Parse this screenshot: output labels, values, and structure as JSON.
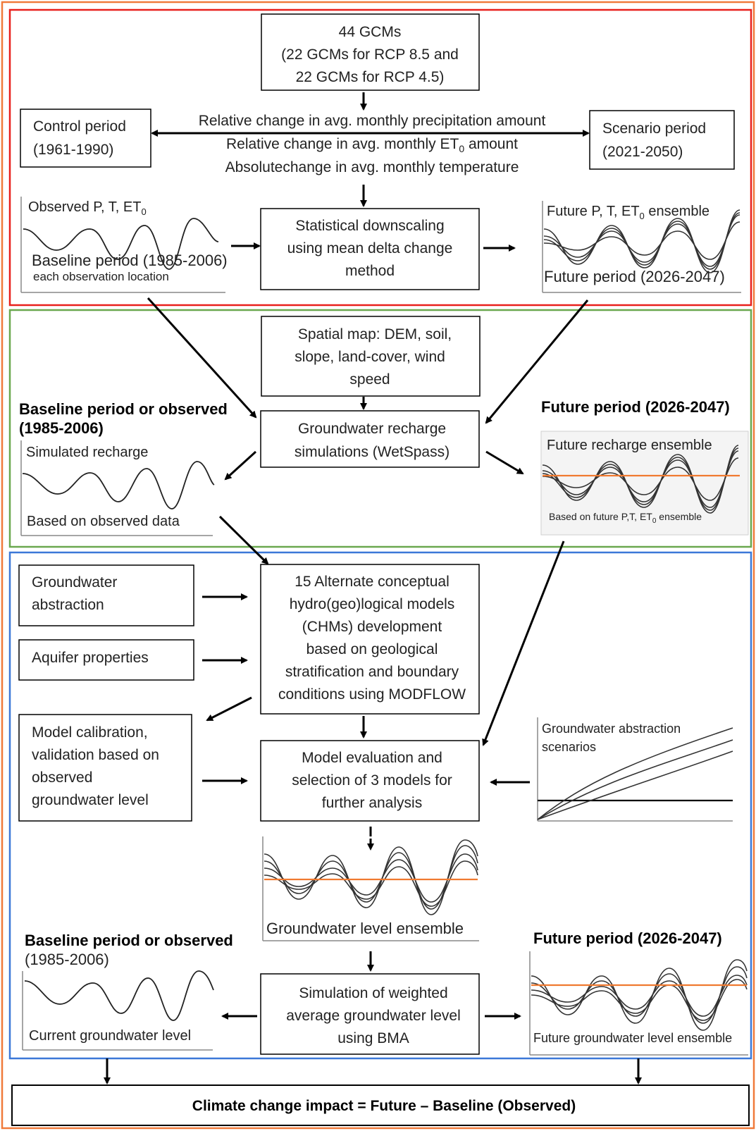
{
  "gcm_box": {
    "line1": "44 GCMs",
    "line2": "(22 GCMs for RCP 8.5 and",
    "line3": "22 GCMs for RCP 4.5)"
  },
  "control_period": {
    "line1": "Control period",
    "line2": "(1961-1990)"
  },
  "scenario_period": {
    "line1": "Scenario period",
    "line2": "(2021-2050)"
  },
  "changes": {
    "line1": "Relative change in avg. monthly precipitation amount",
    "line2_pre": "Relative change in avg. monthly ET",
    "line2_sub": "0",
    "line2_post": " amount",
    "line3": "Absolutechange in avg. monthly temperature"
  },
  "observed": {
    "title_pre": "Observed P, T, ET",
    "title_sub": "0",
    "label": "Baseline period (1985-2006)",
    "sublabel": "each observation location"
  },
  "downscaling": {
    "line1": "Statistical downscaling",
    "line2": "using mean delta change",
    "line3": "method"
  },
  "future_climate": {
    "title_pre": "Future P, T, ET",
    "title_sub": "0",
    "title_post": " ensemble",
    "label": "Future period (2026-2047)"
  },
  "spatial_map": {
    "line1": "Spatial map: DEM, soil,",
    "line2": "slope, land-cover, wind",
    "line3": "speed"
  },
  "recharge_sim": {
    "line1": "Groundwater recharge",
    "line2": "simulations (WetSpass)"
  },
  "baseline_recharge": {
    "heading1": "Baseline period or observed",
    "heading2": "(1985-2006)",
    "title": "Simulated recharge",
    "label": "Based on observed data"
  },
  "future_recharge": {
    "heading": "Future period (2026-2047)",
    "title": "Future recharge ensemble",
    "label_pre": "Based on future P,T, ET",
    "label_sub": "0",
    "label_post": " ensemble"
  },
  "gw_abstraction": {
    "line1": "Groundwater",
    "line2": "abstraction"
  },
  "aquifer": {
    "label": "Aquifer properties"
  },
  "chm": {
    "line1": "15 Alternate conceptual",
    "line2": "hydro(geo)logical models",
    "line3": "(CHMs) development",
    "line4": "based on geological",
    "line5": "stratification and boundary",
    "line6": "conditions using MODFLOW"
  },
  "calibration": {
    "line1": "Model calibration,",
    "line2": "validation based on",
    "line3": "observed",
    "line4": "groundwater level"
  },
  "evaluation": {
    "line1": "Model evaluation and",
    "line2": "selection of 3 models for",
    "line3": "further analysis"
  },
  "abstraction_scenarios": {
    "line1": "Groundwater abstraction",
    "line2": "scenarios"
  },
  "gw_ensemble": {
    "label": "Groundwater level ensemble"
  },
  "baseline_gw": {
    "heading1": "Baseline period or observed",
    "heading2": "(1985-2006)",
    "label": "Current groundwater level"
  },
  "bma": {
    "line1": "Simulation of weighted",
    "line2": "average groundwater level",
    "line3": "using BMA"
  },
  "future_gw": {
    "heading": "Future period (2026-2047)",
    "label": "Future groundwater level ensemble"
  },
  "impact": {
    "label": "Climate change impact = Future – Baseline (Observed)"
  },
  "colors": {
    "outer_frame": "#f07a3a",
    "section_climate": "#e8201c",
    "section_recharge": "#6aa84f",
    "section_groundwater": "#3c78d8",
    "ensemble_mean": "#f07a30"
  }
}
